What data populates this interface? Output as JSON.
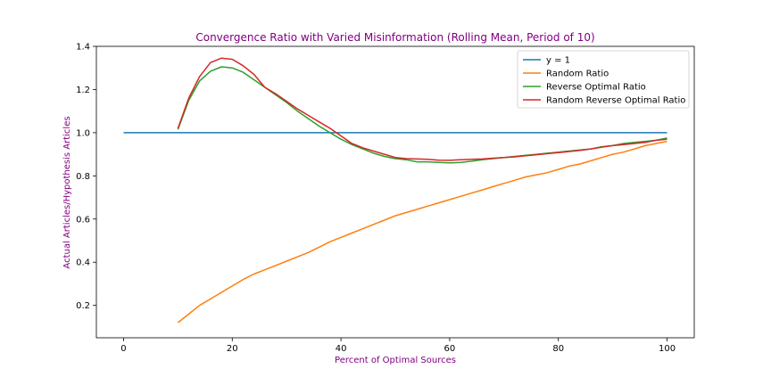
{
  "chart_data": {
    "type": "line",
    "title": "Convergence Ratio with Varied Misinformation (Rolling Mean, Period of 10)",
    "xlabel": "Percent of Optimal Sources",
    "ylabel": "Actual Articles/Hypothesis Articles",
    "xlim": [
      -5,
      105
    ],
    "ylim": [
      0.05,
      1.4
    ],
    "xticks": [
      0,
      20,
      40,
      60,
      80,
      100
    ],
    "yticks": [
      0.2,
      0.4,
      0.6,
      0.8,
      1.0,
      1.2,
      1.4
    ],
    "xtick_labels": [
      "0",
      "20",
      "40",
      "60",
      "80",
      "100"
    ],
    "ytick_labels": [
      "0.2",
      "0.4",
      "0.6",
      "0.8",
      "1.0",
      "1.2",
      "1.4"
    ],
    "grid": false,
    "legend_position": "top-right",
    "label_color": "#800080",
    "series": [
      {
        "name": "y = 1",
        "color": "#1f77b4",
        "x": [
          0,
          100
        ],
        "y": [
          1.0,
          1.0
        ]
      },
      {
        "name": "Random Ratio",
        "color": "#ff7f0e",
        "x": [
          10,
          12,
          14,
          16,
          18,
          20,
          22,
          24,
          26,
          28,
          30,
          32,
          34,
          36,
          38,
          40,
          42,
          44,
          46,
          48,
          50,
          52,
          54,
          56,
          58,
          60,
          62,
          64,
          66,
          68,
          70,
          72,
          74,
          76,
          78,
          80,
          82,
          84,
          86,
          88,
          90,
          92,
          94,
          96,
          98,
          100
        ],
        "y": [
          0.12,
          0.16,
          0.2,
          0.23,
          0.26,
          0.29,
          0.32,
          0.345,
          0.365,
          0.385,
          0.405,
          0.425,
          0.445,
          0.47,
          0.495,
          0.515,
          0.535,
          0.555,
          0.575,
          0.595,
          0.615,
          0.63,
          0.645,
          0.66,
          0.675,
          0.69,
          0.705,
          0.72,
          0.735,
          0.75,
          0.765,
          0.78,
          0.795,
          0.805,
          0.815,
          0.83,
          0.845,
          0.855,
          0.87,
          0.885,
          0.9,
          0.91,
          0.925,
          0.94,
          0.95,
          0.96
        ]
      },
      {
        "name": "Reverse Optimal Ratio",
        "color": "#2ca02c",
        "x": [
          10,
          12,
          14,
          16,
          18,
          20,
          22,
          24,
          26,
          28,
          30,
          32,
          34,
          36,
          38,
          40,
          42,
          44,
          46,
          48,
          50,
          52,
          54,
          56,
          58,
          60,
          62,
          64,
          66,
          68,
          70,
          72,
          74,
          76,
          78,
          80,
          82,
          84,
          86,
          88,
          90,
          92,
          94,
          96,
          98,
          100
        ],
        "y": [
          1.015,
          1.15,
          1.24,
          1.285,
          1.305,
          1.3,
          1.28,
          1.245,
          1.21,
          1.175,
          1.14,
          1.1,
          1.065,
          1.03,
          1.0,
          0.97,
          0.945,
          0.925,
          0.905,
          0.89,
          0.88,
          0.875,
          0.865,
          0.865,
          0.862,
          0.86,
          0.862,
          0.868,
          0.875,
          0.88,
          0.885,
          0.89,
          0.895,
          0.9,
          0.905,
          0.91,
          0.915,
          0.92,
          0.925,
          0.935,
          0.94,
          0.95,
          0.955,
          0.96,
          0.965,
          0.975
        ]
      },
      {
        "name": "Random Reverse Optimal Ratio",
        "color": "#d62728",
        "x": [
          10,
          12,
          14,
          16,
          18,
          20,
          22,
          24,
          26,
          28,
          30,
          32,
          34,
          36,
          38,
          40,
          42,
          44,
          46,
          48,
          50,
          52,
          54,
          56,
          58,
          60,
          62,
          64,
          66,
          68,
          70,
          72,
          74,
          76,
          78,
          80,
          82,
          84,
          86,
          88,
          90,
          92,
          94,
          96,
          98,
          100
        ],
        "y": [
          1.02,
          1.16,
          1.26,
          1.325,
          1.345,
          1.34,
          1.31,
          1.27,
          1.21,
          1.18,
          1.145,
          1.11,
          1.08,
          1.05,
          1.02,
          0.985,
          0.95,
          0.93,
          0.915,
          0.9,
          0.885,
          0.88,
          0.878,
          0.877,
          0.873,
          0.872,
          0.875,
          0.877,
          0.878,
          0.882,
          0.885,
          0.888,
          0.893,
          0.898,
          0.903,
          0.908,
          0.913,
          0.918,
          0.925,
          0.933,
          0.94,
          0.945,
          0.95,
          0.955,
          0.965,
          0.97
        ]
      }
    ]
  }
}
